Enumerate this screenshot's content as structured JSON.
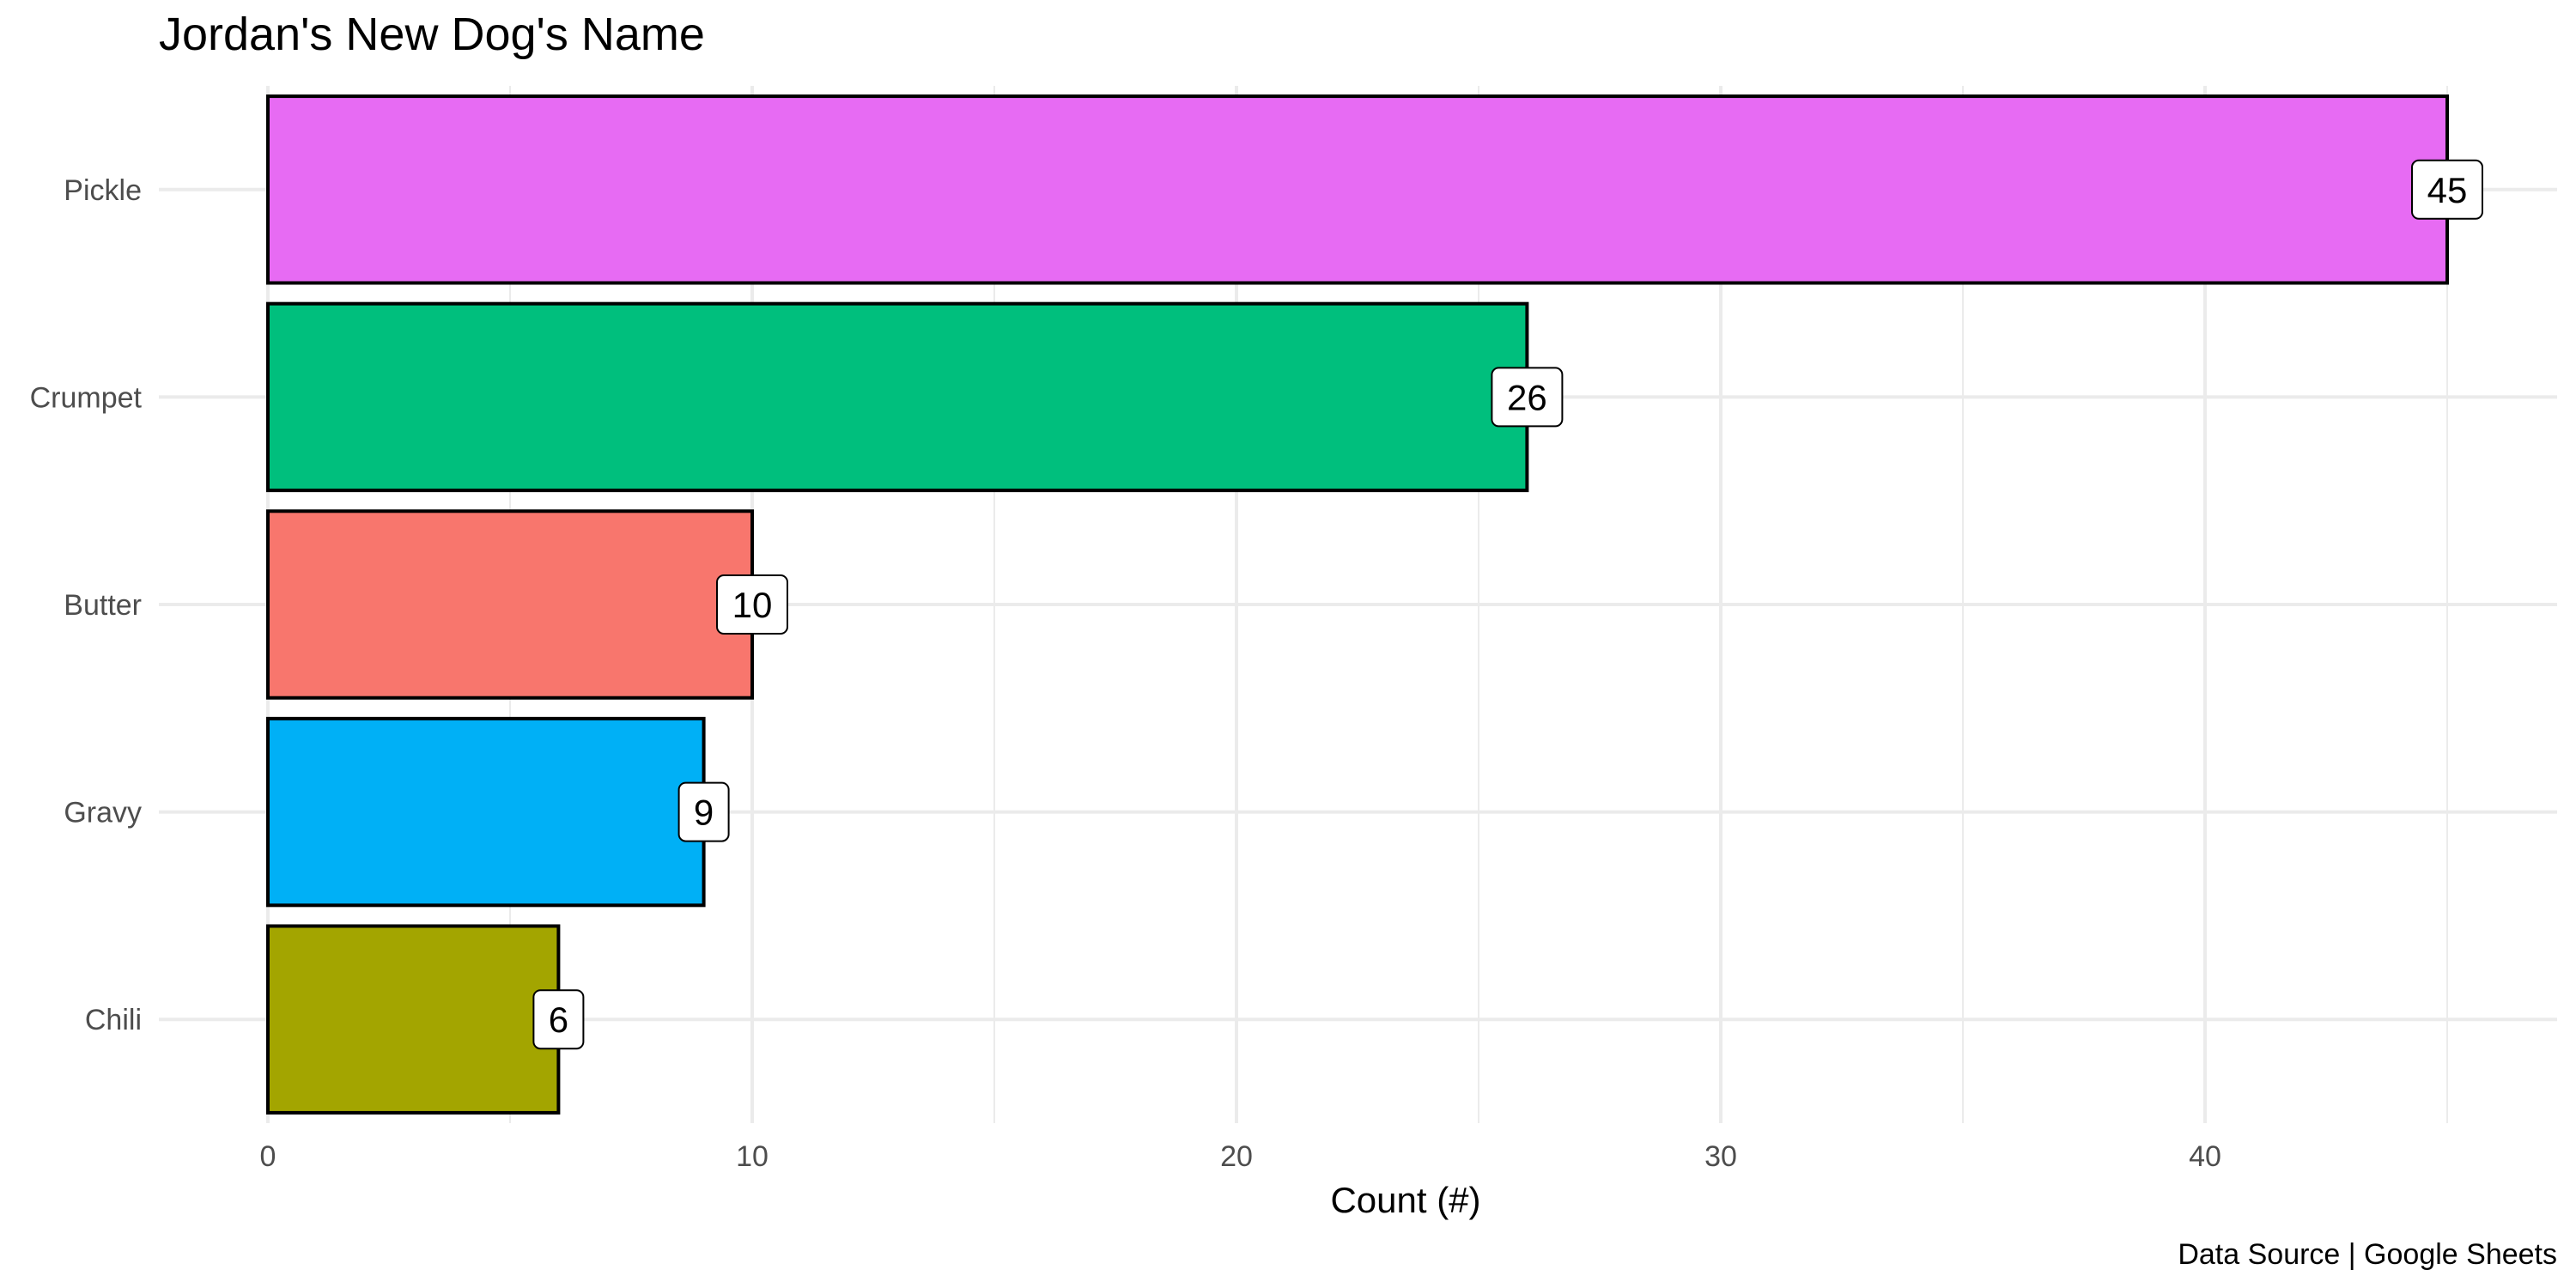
{
  "chart_data": {
    "type": "bar",
    "orientation": "horizontal",
    "title": "Jordan's New Dog's Name",
    "xlabel": "Count (#)",
    "ylabel": "",
    "caption": "Data Source | Google Sheets",
    "categories": [
      "Pickle",
      "Crumpet",
      "Butter",
      "Gravy",
      "Chili"
    ],
    "values": [
      45,
      26,
      10,
      9,
      6
    ],
    "data_labels": [
      "45",
      "26",
      "10",
      "9",
      "6"
    ],
    "colors": [
      "#E76BF3",
      "#00BF7D",
      "#F8766D",
      "#00B0F6",
      "#A3A500"
    ],
    "xlim": [
      0,
      47.25
    ],
    "xticks": [
      0,
      10,
      20,
      30,
      40
    ],
    "xtick_labels": [
      "0",
      "10",
      "20",
      "30",
      "40"
    ],
    "grid": true,
    "legend": "none"
  }
}
